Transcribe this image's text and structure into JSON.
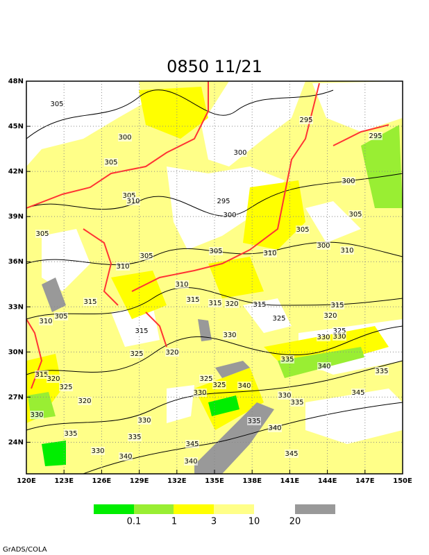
{
  "map": {
    "title": "0850 11/21",
    "xlim": [
      120,
      150
    ],
    "ylim": [
      21.9,
      48
    ],
    "xticks": [
      {
        "value": 120,
        "label": "120E"
      },
      {
        "value": 123,
        "label": "123E"
      },
      {
        "value": 126,
        "label": "126E"
      },
      {
        "value": 129,
        "label": "129E"
      },
      {
        "value": 132,
        "label": "132E"
      },
      {
        "value": 135,
        "label": "135E"
      },
      {
        "value": 138,
        "label": "138E"
      },
      {
        "value": 141,
        "label": "141E"
      },
      {
        "value": 144,
        "label": "144E"
      },
      {
        "value": 147,
        "label": "147E"
      },
      {
        "value": 150,
        "label": "150E"
      }
    ],
    "yticks": [
      {
        "value": 24,
        "label": "24N"
      },
      {
        "value": 27,
        "label": "27N"
      },
      {
        "value": 30,
        "label": "30N"
      },
      {
        "value": 33,
        "label": "33N"
      },
      {
        "value": 36,
        "label": "36N"
      },
      {
        "value": 39,
        "label": "39N"
      },
      {
        "value": 42,
        "label": "42N"
      },
      {
        "value": 45,
        "label": "45N"
      },
      {
        "value": 48,
        "label": "48N"
      }
    ],
    "grid": true,
    "contour_labels": [
      305,
      300,
      305,
      300,
      295,
      295,
      300,
      305,
      310,
      295,
      300,
      305,
      305,
      305,
      300,
      310,
      310,
      305,
      305,
      310,
      310,
      315,
      315,
      315,
      320,
      315,
      315,
      325,
      320,
      310,
      305,
      315,
      330,
      330,
      325,
      330,
      335,
      340,
      335,
      325,
      320,
      315,
      320,
      325,
      325,
      325,
      340,
      330,
      330,
      335,
      345,
      320,
      330,
      335,
      330,
      335,
      335,
      340,
      345,
      330,
      340,
      340,
      345
    ],
    "legend": {
      "colors": [
        "#00ee00",
        "#99ee33",
        "#ffff00",
        "#ffff88",
        "#999999"
      ],
      "labels": [
        "0.1",
        "1",
        "3",
        "10",
        "20"
      ]
    },
    "footer": "GrADS/COLA"
  }
}
